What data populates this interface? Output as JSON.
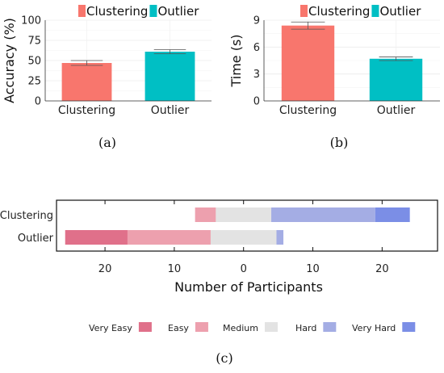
{
  "colors": {
    "clustering": "#F8766D",
    "outlier": "#00BFC4",
    "very_easy": "#E0708A",
    "easy": "#EDA0AE",
    "medium": "#E3E3E3",
    "hard": "#A4ADE4",
    "very_hard": "#7B8EE6"
  },
  "chart_data": [
    {
      "id": "a",
      "type": "bar",
      "caption": "(a)",
      "categories": [
        "Clustering",
        "Outlier"
      ],
      "values": [
        47,
        61
      ],
      "errors": [
        3,
        2.5
      ],
      "ylabel": "Accuracy (%)",
      "xlabel": "",
      "ylim": [
        0,
        100
      ],
      "yticks": [
        0,
        25,
        50,
        75,
        100
      ],
      "legend": [
        "Clustering",
        "Outlier"
      ],
      "legend_position": "top"
    },
    {
      "id": "b",
      "type": "bar",
      "caption": "(b)",
      "categories": [
        "Clustering",
        "Outlier"
      ],
      "values": [
        8.4,
        4.7
      ],
      "errors": [
        0.4,
        0.2
      ],
      "ylabel": "Time (s)",
      "xlabel": "",
      "ylim": [
        0,
        9
      ],
      "yticks": [
        0,
        3,
        6,
        9
      ],
      "legend": [
        "Clustering",
        "Outlier"
      ],
      "legend_position": "top"
    },
    {
      "id": "c",
      "type": "bar",
      "subtype": "diverging-stacked-horizontal",
      "caption": "(c)",
      "categories": [
        "Clustering",
        "Outlier"
      ],
      "levels": [
        "Very Easy",
        "Easy",
        "Medium",
        "Hard",
        "Very Hard"
      ],
      "series": [
        {
          "name": "Very Easy",
          "values": [
            0,
            9
          ]
        },
        {
          "name": "Easy",
          "values": [
            3,
            12
          ]
        },
        {
          "name": "Medium",
          "values": [
            8,
            9.5
          ]
        },
        {
          "name": "Hard",
          "values": [
            15,
            1
          ]
        },
        {
          "name": "Very Hard",
          "values": [
            5,
            0
          ]
        }
      ],
      "xlabel": "Number of Participants",
      "xlim": [
        -27,
        28
      ],
      "xtick_values": [
        -20,
        -10,
        0,
        10,
        20
      ],
      "xtick_labels": [
        "20",
        "10",
        "0",
        "10",
        "20"
      ],
      "legend_position": "bottom"
    }
  ]
}
